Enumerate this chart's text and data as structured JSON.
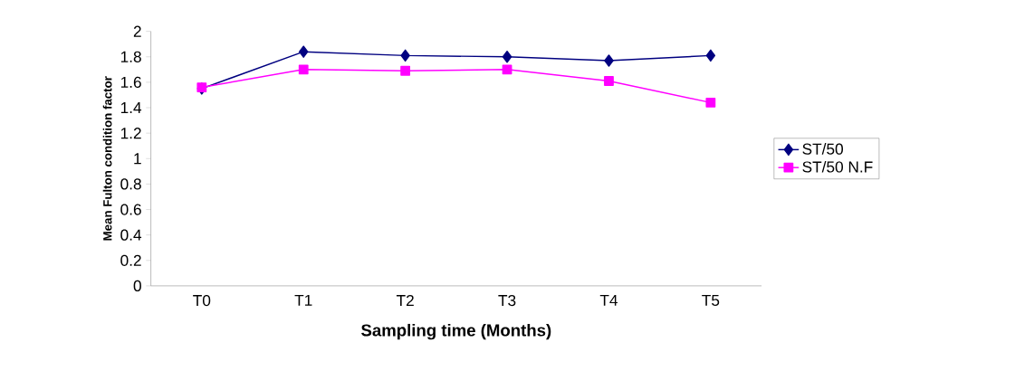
{
  "chart_data": {
    "type": "line",
    "xlabel": "Sampling time (Months)",
    "ylabel": "Mean Fulton condition factor",
    "categories": [
      "T0",
      "T1",
      "T2",
      "T3",
      "T4",
      "T5"
    ],
    "series": [
      {
        "name": "ST/50",
        "color": "#000080",
        "marker": "diamond",
        "values": [
          1.55,
          1.84,
          1.81,
          1.8,
          1.77,
          1.81
        ]
      },
      {
        "name": "ST/50 N.F",
        "color": "#ff00ff",
        "marker": "square",
        "values": [
          1.56,
          1.7,
          1.69,
          1.7,
          1.61,
          1.44
        ]
      }
    ],
    "ylim": [
      0,
      2
    ],
    "yticks": [
      0,
      0.2,
      0.4,
      0.6,
      0.8,
      1,
      1.2,
      1.4,
      1.6,
      1.8,
      2
    ],
    "grid": false,
    "legend": "right",
    "line_style": "solid"
  }
}
